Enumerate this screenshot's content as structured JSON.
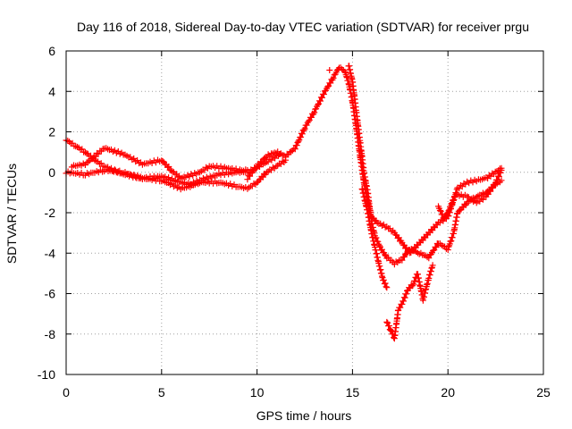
{
  "chart_data": {
    "type": "scatter",
    "title": "Day 116 of 2018, Sidereal Day-to-day VTEC variation (SDTVAR) for receiver prgu",
    "xlabel": "GPS time / hours",
    "ylabel": "SDTVAR / TECUs",
    "xlim": [
      0,
      25
    ],
    "ylim": [
      -10,
      6
    ],
    "xticks": [
      "0",
      "5",
      "10",
      "15",
      "20",
      "25"
    ],
    "yticks": [
      "-10",
      "-8",
      "-6",
      "-4",
      "-2",
      "0",
      "2",
      "4",
      "6"
    ],
    "grid": true,
    "marker": "+",
    "color": "#ff0000",
    "series": [
      {
        "points": [
          [
            0.0,
            1.6
          ],
          [
            0.5,
            1.3
          ],
          [
            1.0,
            1.0
          ],
          [
            1.5,
            0.6
          ],
          [
            2.0,
            0.3
          ],
          [
            3.0,
            -0.1
          ],
          [
            4.0,
            -0.3
          ],
          [
            5.0,
            -0.2
          ],
          [
            6.0,
            -0.5
          ],
          [
            6.5,
            -0.6
          ],
          [
            7.0,
            -0.4
          ],
          [
            8.0,
            -0.1
          ],
          [
            9.0,
            0.0
          ],
          [
            9.5,
            0.1
          ]
        ]
      },
      {
        "points": [
          [
            0.3,
            0.3
          ],
          [
            1.0,
            0.4
          ],
          [
            2.0,
            1.2
          ],
          [
            3.0,
            0.9
          ],
          [
            4.0,
            0.4
          ],
          [
            5.0,
            0.6
          ],
          [
            5.5,
            0.1
          ],
          [
            6.0,
            -0.3
          ],
          [
            7.0,
            0.0
          ],
          [
            7.5,
            0.3
          ],
          [
            8.5,
            0.2
          ],
          [
            9.5,
            0.0
          ],
          [
            10.5,
            0.5
          ],
          [
            11.2,
            0.9
          ]
        ]
      },
      {
        "points": [
          [
            0.0,
            0.0
          ],
          [
            1.0,
            -0.1
          ],
          [
            2.0,
            0.1
          ],
          [
            3.0,
            0.0
          ],
          [
            4.0,
            -0.3
          ],
          [
            5.0,
            -0.4
          ],
          [
            6.0,
            -0.8
          ],
          [
            6.5,
            -0.7
          ],
          [
            7.0,
            -0.5
          ],
          [
            8.0,
            -0.5
          ],
          [
            9.0,
            -0.7
          ],
          [
            9.5,
            -0.8
          ],
          [
            10.0,
            -0.5
          ],
          [
            10.5,
            0.0
          ],
          [
            11.0,
            0.3
          ],
          [
            11.5,
            0.6
          ]
        ]
      },
      {
        "points": [
          [
            9.5,
            -0.3
          ],
          [
            10.0,
            0.3
          ],
          [
            10.5,
            0.8
          ],
          [
            11.0,
            1.0
          ],
          [
            11.5,
            0.8
          ],
          [
            12.0,
            1.2
          ],
          [
            12.5,
            2.2
          ],
          [
            13.0,
            3.0
          ],
          [
            13.5,
            3.9
          ],
          [
            14.0,
            4.7
          ],
          [
            14.3,
            5.2
          ],
          [
            14.6,
            5.0
          ],
          [
            14.8,
            4.4
          ],
          [
            15.0,
            3.5
          ],
          [
            15.2,
            2.2
          ],
          [
            15.4,
            0.8
          ],
          [
            15.6,
            -0.5
          ],
          [
            15.8,
            -1.5
          ],
          [
            16.0,
            -2.2
          ],
          [
            16.3,
            -2.5
          ],
          [
            16.8,
            -2.7
          ],
          [
            17.2,
            -3.0
          ],
          [
            17.6,
            -3.5
          ],
          [
            18.0,
            -4.0
          ],
          [
            18.5,
            -3.5
          ],
          [
            19.0,
            -3.0
          ],
          [
            19.5,
            -2.5
          ],
          [
            20.0,
            -2.2
          ],
          [
            20.5,
            -0.8
          ],
          [
            21.0,
            -0.5
          ],
          [
            22.0,
            -0.3
          ],
          [
            22.8,
            0.2
          ]
        ]
      },
      {
        "points": [
          [
            14.8,
            5.3
          ],
          [
            15.0,
            4.5
          ],
          [
            15.2,
            3.0
          ],
          [
            15.4,
            1.5
          ],
          [
            15.6,
            0.0
          ],
          [
            15.8,
            -1.0
          ],
          [
            16.0,
            -2.5
          ],
          [
            16.2,
            -3.2
          ],
          [
            16.5,
            -3.8
          ],
          [
            16.8,
            -4.2
          ],
          [
            17.2,
            -4.5
          ],
          [
            17.6,
            -4.3
          ],
          [
            18.0,
            -3.8
          ],
          [
            18.5,
            -4.0
          ],
          [
            19.0,
            -4.2
          ],
          [
            19.5,
            -3.5
          ],
          [
            20.0,
            -3.8
          ],
          [
            20.3,
            -3.0
          ],
          [
            20.5,
            -2.0
          ],
          [
            21.0,
            -1.5
          ],
          [
            21.5,
            -1.2
          ],
          [
            22.0,
            -1.0
          ],
          [
            22.5,
            -0.6
          ],
          [
            22.8,
            -0.4
          ]
        ]
      },
      {
        "points": [
          [
            15.5,
            -0.8
          ],
          [
            15.8,
            -2.0
          ],
          [
            16.0,
            -3.0
          ],
          [
            16.2,
            -3.8
          ],
          [
            16.4,
            -4.6
          ],
          [
            16.6,
            -5.3
          ],
          [
            16.8,
            -5.7
          ]
        ]
      },
      {
        "points": [
          [
            16.8,
            -7.4
          ],
          [
            17.0,
            -7.8
          ],
          [
            17.2,
            -8.2
          ],
          [
            17.4,
            -6.8
          ],
          [
            17.6,
            -6.5
          ],
          [
            17.9,
            -5.8
          ],
          [
            18.2,
            -5.5
          ],
          [
            18.4,
            -5.0
          ],
          [
            18.7,
            -6.3
          ],
          [
            19.0,
            -5.2
          ],
          [
            19.2,
            -4.6
          ]
        ]
      },
      {
        "points": [
          [
            19.5,
            -1.7
          ],
          [
            19.8,
            -2.3
          ],
          [
            20.0,
            -2.0
          ],
          [
            20.4,
            -1.1
          ],
          [
            21.0,
            -1.2
          ],
          [
            21.5,
            -1.5
          ],
          [
            22.0,
            -1.2
          ],
          [
            22.5,
            -0.5
          ],
          [
            22.8,
            0.1
          ]
        ]
      }
    ]
  }
}
